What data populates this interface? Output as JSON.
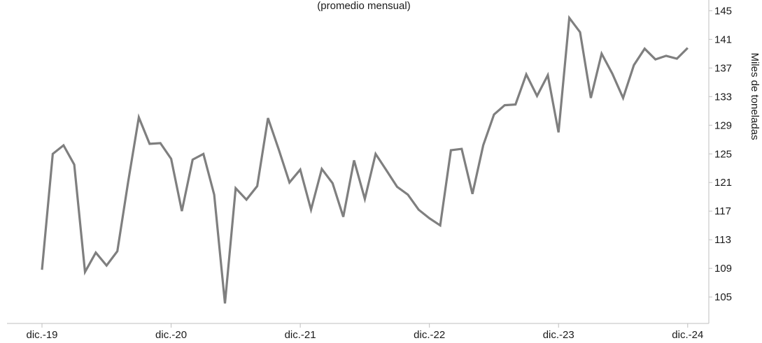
{
  "chart_data": {
    "type": "line",
    "title": "",
    "subtitle": "(promedio mensual)",
    "xlabel": "",
    "ylabel": "Miles de toneladas",
    "x_tick_labels": [
      "dic.-19",
      "dic.-20",
      "dic.-21",
      "dic.-22",
      "dic.-23",
      "dic.-24"
    ],
    "x_tick_indices": [
      0,
      12,
      24,
      36,
      48,
      60
    ],
    "y_ticks": [
      105,
      109,
      113,
      117,
      121,
      125,
      129,
      133,
      137,
      141,
      145
    ],
    "ylim": [
      101.5,
      146.5
    ],
    "y_axis_side": "right",
    "grid": false,
    "legend": "none",
    "line_color": "#7f7f7f",
    "series": [
      {
        "values": [
          108.8,
          125.0,
          126.2,
          123.5,
          108.5,
          111.2,
          109.4,
          111.4,
          121.0,
          130.1,
          126.4,
          126.5,
          124.3,
          117.0,
          124.2,
          125.0,
          119.3,
          104.1,
          120.2,
          118.6,
          120.5,
          130.0,
          125.6,
          121.0,
          122.8,
          117.2,
          122.9,
          120.9,
          116.2,
          124.1,
          118.7,
          125.0,
          122.7,
          120.4,
          119.3,
          117.2,
          116.0,
          115.0,
          125.5,
          125.7,
          119.4,
          126.2,
          130.5,
          131.8,
          131.9,
          136.1,
          133.1,
          136.0,
          128.0,
          144.0,
          142.0,
          132.8,
          139.0,
          136.2,
          132.8,
          137.4,
          139.7,
          138.2,
          138.7,
          138.3,
          139.8
        ]
      }
    ]
  }
}
